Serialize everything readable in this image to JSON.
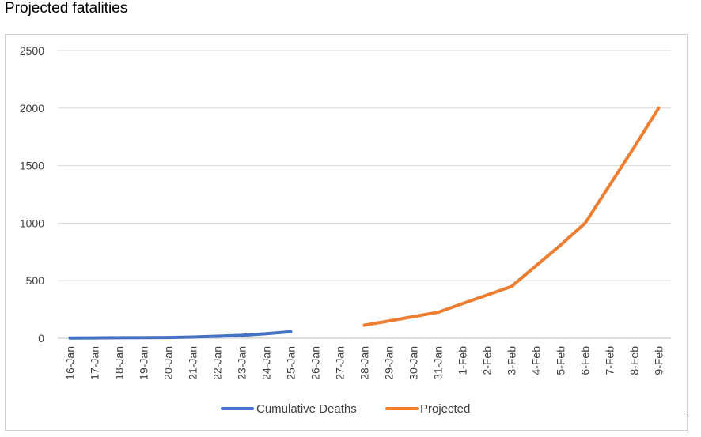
{
  "page": {
    "title": "Projected fatalities"
  },
  "chart_data": {
    "type": "line",
    "x": [
      "16-Jan",
      "17-Jan",
      "18-Jan",
      "19-Jan",
      "20-Jan",
      "21-Jan",
      "22-Jan",
      "23-Jan",
      "24-Jan",
      "25-Jan",
      "26-Jan",
      "27-Jan",
      "28-Jan",
      "29-Jan",
      "30-Jan",
      "31-Jan",
      "1-Feb",
      "2-Feb",
      "3-Feb",
      "4-Feb",
      "5-Feb",
      "6-Feb",
      "7-Feb",
      "8-Feb",
      "9-Feb"
    ],
    "yticks": [
      "0",
      "500",
      "1000",
      "1500",
      "2000",
      "2500"
    ],
    "ylim": [
      0,
      2500
    ],
    "grid": true,
    "legend_position": "bottom",
    "series": [
      {
        "name": "Cumulative Deaths",
        "color": "#4472C4",
        "values": [
          2,
          3,
          4,
          5,
          6,
          10,
          17,
          25,
          40,
          56,
          null,
          null,
          null,
          null,
          null,
          null,
          null,
          null,
          null,
          null,
          null,
          null,
          null,
          null,
          null
        ]
      },
      {
        "name": "Projected",
        "color": "#ED7D31",
        "values": [
          null,
          null,
          null,
          null,
          null,
          null,
          null,
          null,
          null,
          null,
          null,
          null,
          113,
          150,
          188,
          225,
          300,
          375,
          450,
          630,
          810,
          1000,
          1330,
          1660,
          2000
        ]
      }
    ]
  }
}
